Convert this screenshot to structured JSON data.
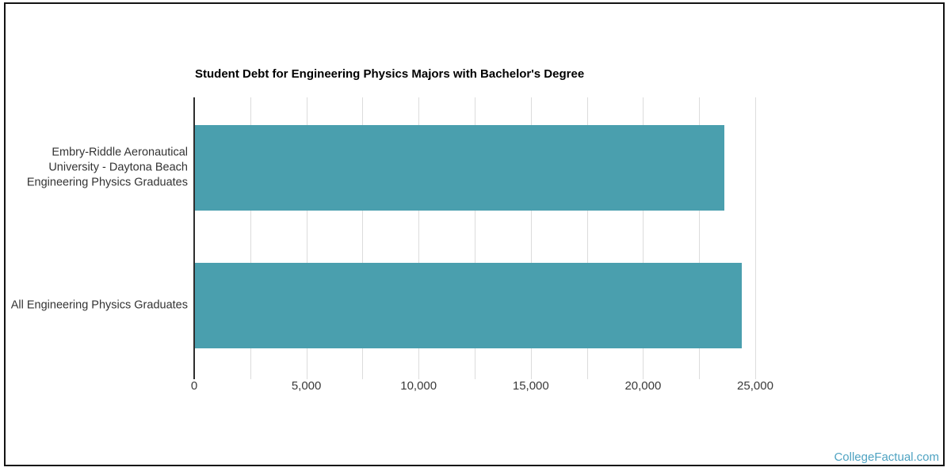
{
  "page": {
    "background": "#ffffff",
    "frame_border_color": "#131313",
    "watermark": "CollegeFactual.com",
    "watermark_color": "#4fa3c2"
  },
  "chart_data": {
    "type": "bar",
    "orientation": "horizontal",
    "title": "Student Debt for Engineering Physics Majors with Bachelor's Degree",
    "categories": [
      "Embry-Riddle Aeronautical University - Daytona Beach Engineering Physics Graduates",
      "All Engineering Physics Graduates"
    ],
    "category_lines": [
      [
        "Embry-Riddle Aeronautical",
        "University - Daytona Beach",
        "Engineering Physics Graduates"
      ],
      [
        "All Engineering Physics Graduates"
      ]
    ],
    "values": [
      23600,
      24375
    ],
    "xlabel": "",
    "ylabel": "",
    "xlim": [
      0,
      25000
    ],
    "x_tick_values": [
      0,
      5000,
      10000,
      15000,
      20000,
      25000
    ],
    "x_tick_labels": [
      "0",
      "5,000",
      "10,000",
      "15,000",
      "20,000",
      "25,000"
    ],
    "minor_grid_step": 2500,
    "grid": "vertical-on",
    "legend": "none",
    "bar_color": "#4a9fae",
    "grid_color": "#dcdcdc",
    "axis_color": "#2e2e2e",
    "tick_label_color": "#3a3a3a",
    "category_label_color": "#333333",
    "title_color": "#000000"
  }
}
